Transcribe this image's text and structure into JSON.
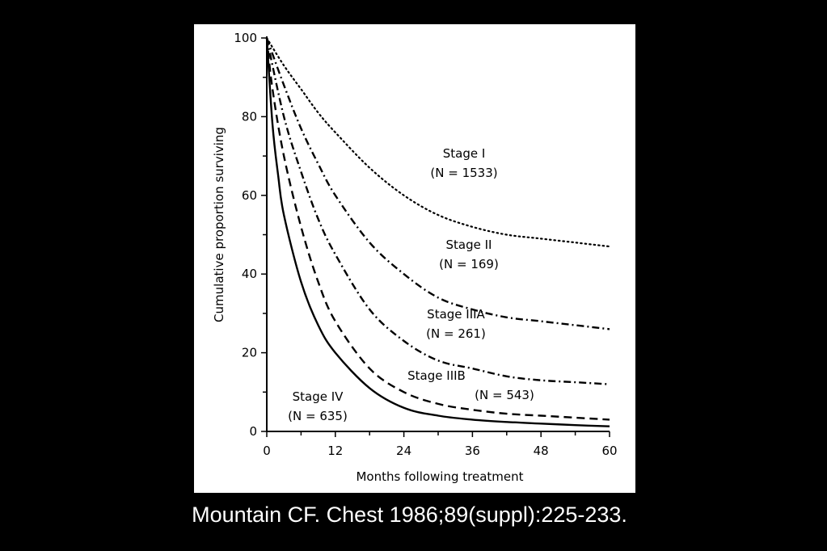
{
  "caption": "Mountain CF. Chest 1986;89(suppl):225-233.",
  "chart_data": {
    "type": "line",
    "xlabel": "Months following treatment",
    "ylabel": "Cumulative proportion surviving",
    "xlim": [
      0,
      60
    ],
    "ylim": [
      0,
      100
    ],
    "xticks": [
      0,
      12,
      24,
      36,
      48,
      60
    ],
    "yticks": [
      0,
      20,
      40,
      60,
      80,
      100
    ],
    "grid": false,
    "legend": "none (series labeled inline)",
    "series": [
      {
        "name": "Stage I",
        "n_label": "(N = 1533)",
        "line_style": "dotted",
        "x": [
          0,
          3,
          6,
          9,
          12,
          18,
          24,
          30,
          36,
          42,
          48,
          54,
          60
        ],
        "y": [
          100,
          93,
          87,
          81,
          76,
          67,
          60,
          55,
          52,
          50,
          49,
          48,
          47
        ]
      },
      {
        "name": "Stage II",
        "n_label": "(N = 169)",
        "line_style": "dash-dot",
        "x": [
          0,
          3,
          6,
          9,
          12,
          18,
          24,
          30,
          36,
          42,
          48,
          54,
          60
        ],
        "y": [
          100,
          88,
          77,
          68,
          60,
          48,
          40,
          34,
          31,
          29,
          28,
          27,
          26
        ]
      },
      {
        "name": "Stage IIIA",
        "n_label": "(N = 261)",
        "line_style": "dash-dot",
        "x": [
          0,
          3,
          6,
          9,
          12,
          18,
          24,
          30,
          36,
          42,
          48,
          54,
          60
        ],
        "y": [
          100,
          80,
          66,
          54,
          45,
          31,
          23,
          18,
          16,
          14,
          13,
          12.5,
          12
        ]
      },
      {
        "name": "Stage IIIB",
        "n_label": "(N = 543)",
        "line_style": "dashed",
        "x": [
          0,
          1,
          3,
          6,
          9,
          12,
          18,
          24,
          30,
          36,
          42,
          48,
          54,
          60
        ],
        "y": [
          100,
          87,
          70,
          52,
          38,
          28,
          16,
          10,
          7,
          5.5,
          4.5,
          4,
          3.5,
          3
        ]
      },
      {
        "name": "Stage IV",
        "n_label": "(N = 635)",
        "line_style": "solid",
        "x": [
          0,
          1,
          2,
          3,
          6,
          9,
          12,
          18,
          24,
          30,
          36,
          42,
          48,
          54,
          60
        ],
        "y": [
          100,
          78,
          65,
          55,
          38,
          27,
          20,
          11,
          6,
          4,
          3,
          2.4,
          2,
          1.6,
          1.3
        ]
      }
    ]
  }
}
